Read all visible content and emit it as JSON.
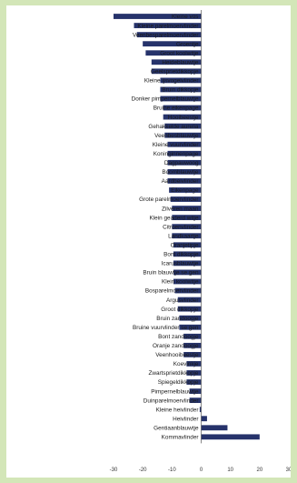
{
  "chart_data": {
    "type": "bar",
    "orientation": "horizontal",
    "categories": [
      "Kleine vos",
      "Kleine parelmoervlinder",
      "Veenbesparelmoervlinder",
      "Groentje",
      "Groot koolwitje",
      "Heideblauwtje",
      "Geelsprietdikkopje",
      "Kleine ijsvogelvlinder",
      "Bruin dikkopje",
      "Donker pimpernelblauwtje",
      "Bruine eikenpage",
      "Hooibeestje",
      "Gehakkelde aurelia",
      "Veenbesblauwtje",
      "Kleine vuurvlinder",
      "Koninginnenpage",
      "Dagpauwoog",
      "Boomblauwtje",
      "Aardbeivlinder",
      "Eikenpage",
      "Grote parelmoervlinder",
      "Zilveren maan",
      "Klein geaderd witje",
      "Citroenvlinder",
      "Landkaartje",
      "Oranjetipje",
      "Bont dikkopje",
      "Icarusblauwtje",
      "Bruin blauwtje se gen",
      "Klein koolwitje",
      "Bosparelmoervlinder",
      "Argusvlinder",
      "Groot dikkopje",
      "Bruin zandoogje",
      "Bruine vuurvlinder se gen",
      "Bont zandoogje",
      "Oranje zandoogje",
      "Veenhooibeestje",
      "Koevinkje",
      "Zwartsprietdikkopje",
      "Spiegeldikkopje",
      "Pimpernelblauwtje",
      "Duinparelmoervlinder",
      "Kleine heivlinder",
      "Heivlinder",
      "Gentiaanblauwtje",
      "Kommavlinder"
    ],
    "values": [
      -30,
      -23,
      -22,
      -20,
      -19,
      -17,
      -17,
      -14,
      -14,
      -14,
      -13,
      -13,
      -12.5,
      -12.5,
      -11.5,
      -11.5,
      -11.5,
      -11.5,
      -11.5,
      -11,
      -10.5,
      -10,
      -10,
      -10,
      -10,
      -9.5,
      -9.5,
      -9.5,
      -9.5,
      -9.5,
      -9,
      -8,
      -8,
      -7.5,
      -7.5,
      -6,
      -6,
      -6,
      -5,
      -5,
      -5,
      -4,
      -4,
      -0.5,
      2,
      9,
      20
    ],
    "xlim": [
      -30,
      30
    ],
    "xticks": [
      -30,
      -20,
      -10,
      0,
      10,
      20,
      30
    ],
    "xtick_labels": [
      "-30",
      "-20",
      "-10",
      "0",
      "10",
      "20",
      "30"
    ],
    "title": "",
    "xlabel": "",
    "ylabel": "",
    "grid": false,
    "legend": "none",
    "bar_color": "#26336b",
    "panel_color": "#ffffff",
    "frame_color": "#d3e6b8"
  }
}
